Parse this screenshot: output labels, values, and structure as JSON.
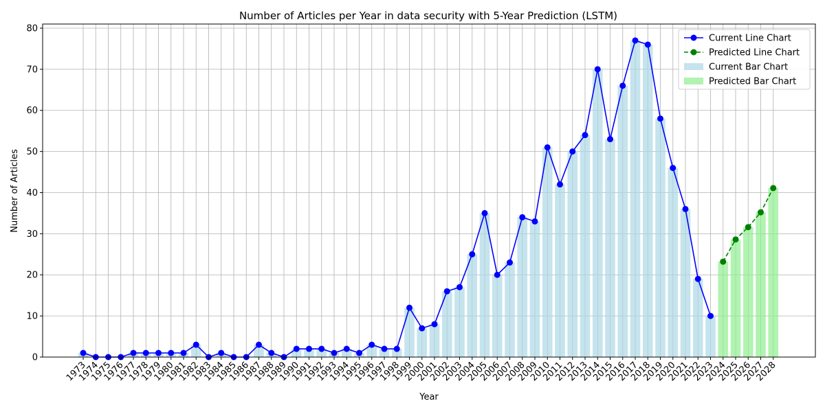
{
  "chart_data": {
    "type": "bar",
    "title": "Number of Articles per Year in data security with 5-Year Prediction (LSTM)",
    "xlabel": "Year",
    "ylabel": "Number of Articles",
    "ylim": [
      0,
      81
    ],
    "yticks": [
      0,
      10,
      20,
      30,
      40,
      50,
      60,
      70,
      80
    ],
    "grid": true,
    "legend_position": "top-right",
    "categories": [
      "1973",
      "1974",
      "1975",
      "1976",
      "1977",
      "1978",
      "1979",
      "1980",
      "1981",
      "1982",
      "1983",
      "1984",
      "1985",
      "1986",
      "1987",
      "1988",
      "1989",
      "1990",
      "1991",
      "1992",
      "1993",
      "1994",
      "1995",
      "1996",
      "1997",
      "1998",
      "1999",
      "2000",
      "2001",
      "2002",
      "2003",
      "2004",
      "2005",
      "2006",
      "2007",
      "2008",
      "2009",
      "2010",
      "2011",
      "2012",
      "2013",
      "2014",
      "2015",
      "2016",
      "2017",
      "2018",
      "2019",
      "2020",
      "2021",
      "2022",
      "2023",
      "2024",
      "2025",
      "2026",
      "2027",
      "2028"
    ],
    "series": [
      {
        "name": "Current Line Chart",
        "kind": "line",
        "color": "#0000ff",
        "style": "solid",
        "x": [
          "1973",
          "1974",
          "1975",
          "1976",
          "1977",
          "1978",
          "1979",
          "1980",
          "1981",
          "1982",
          "1983",
          "1984",
          "1985",
          "1986",
          "1987",
          "1988",
          "1989",
          "1990",
          "1991",
          "1992",
          "1993",
          "1994",
          "1995",
          "1996",
          "1997",
          "1998",
          "1999",
          "2000",
          "2001",
          "2002",
          "2003",
          "2004",
          "2005",
          "2006",
          "2007",
          "2008",
          "2009",
          "2010",
          "2011",
          "2012",
          "2013",
          "2014",
          "2015",
          "2016",
          "2017",
          "2018",
          "2019",
          "2020",
          "2021",
          "2022",
          "2023"
        ],
        "values": [
          1,
          0,
          0,
          0,
          1,
          1,
          1,
          1,
          1,
          3,
          0,
          1,
          0,
          0,
          3,
          1,
          0,
          2,
          2,
          2,
          1,
          2,
          1,
          3,
          2,
          2,
          12,
          7,
          8,
          16,
          17,
          25,
          35,
          20,
          23,
          34,
          33,
          51,
          42,
          50,
          54,
          70,
          53,
          66,
          77,
          76,
          58,
          46,
          36,
          19,
          10
        ]
      },
      {
        "name": "Predicted Line Chart",
        "kind": "line",
        "color": "#008000",
        "style": "dashed",
        "x": [
          "2024",
          "2025",
          "2026",
          "2027",
          "2028"
        ],
        "values": [
          23.2,
          28.6,
          31.6,
          35.2,
          41.1
        ]
      },
      {
        "name": "Current Bar Chart",
        "kind": "bar",
        "color": "#add8e6",
        "x": [
          "1973",
          "1974",
          "1975",
          "1976",
          "1977",
          "1978",
          "1979",
          "1980",
          "1981",
          "1982",
          "1983",
          "1984",
          "1985",
          "1986",
          "1987",
          "1988",
          "1989",
          "1990",
          "1991",
          "1992",
          "1993",
          "1994",
          "1995",
          "1996",
          "1997",
          "1998",
          "1999",
          "2000",
          "2001",
          "2002",
          "2003",
          "2004",
          "2005",
          "2006",
          "2007",
          "2008",
          "2009",
          "2010",
          "2011",
          "2012",
          "2013",
          "2014",
          "2015",
          "2016",
          "2017",
          "2018",
          "2019",
          "2020",
          "2021",
          "2022",
          "2023"
        ],
        "values": [
          1,
          0,
          0,
          0,
          1,
          1,
          1,
          1,
          1,
          3,
          0,
          1,
          0,
          0,
          3,
          1,
          0,
          2,
          2,
          2,
          1,
          2,
          1,
          3,
          2,
          2,
          12,
          7,
          8,
          16,
          17,
          25,
          35,
          20,
          23,
          34,
          33,
          51,
          42,
          50,
          54,
          70,
          53,
          66,
          77,
          76,
          58,
          46,
          36,
          19,
          10
        ]
      },
      {
        "name": "Predicted Bar Chart",
        "kind": "bar",
        "color": "#90ee90",
        "x": [
          "2024",
          "2025",
          "2026",
          "2027",
          "2028"
        ],
        "values": [
          23.2,
          28.6,
          31.6,
          35.2,
          41.1
        ]
      }
    ]
  }
}
